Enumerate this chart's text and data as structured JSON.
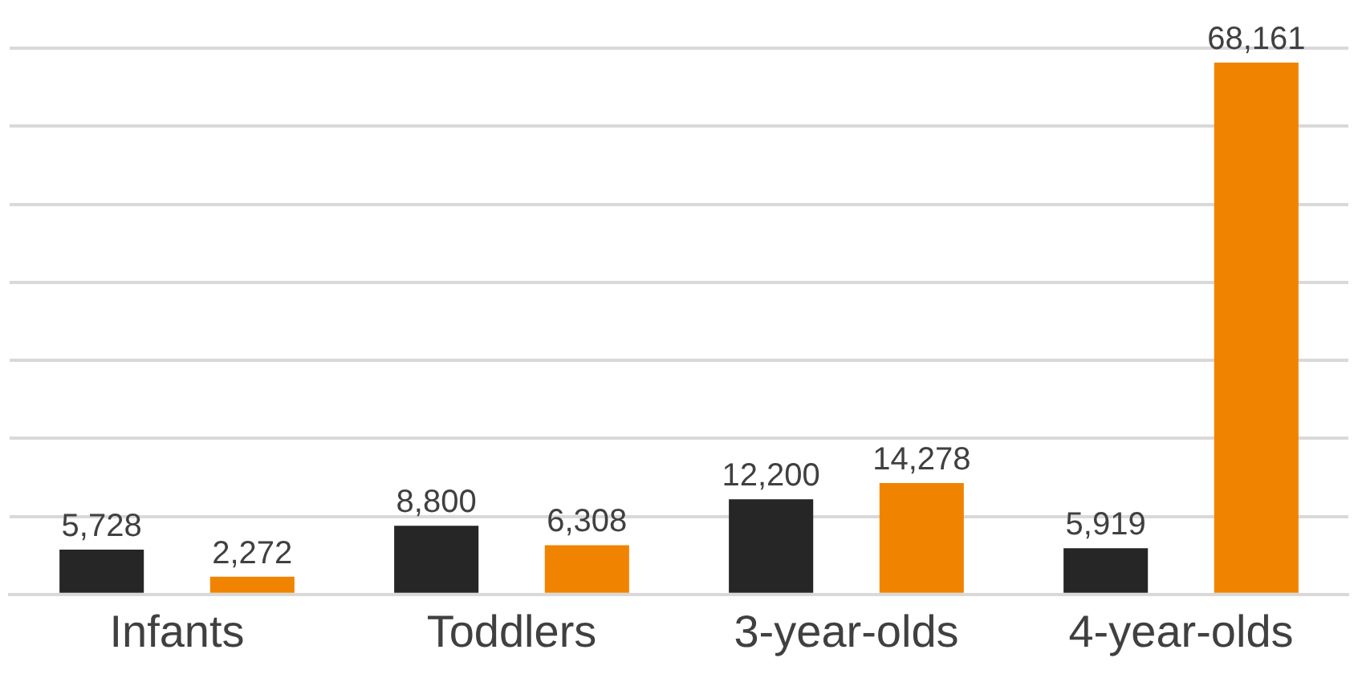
{
  "chart_data": {
    "type": "bar",
    "categories": [
      "Infants",
      "Toddlers",
      "3-year-olds",
      "4-year-olds"
    ],
    "series": [
      {
        "color": "#262626",
        "values": [
          5728,
          8800,
          12200,
          5919
        ],
        "value_labels": [
          "5,728",
          "8,800",
          "12,200",
          "5,919"
        ]
      },
      {
        "color": "#f08400",
        "values": [
          2272,
          6308,
          14278,
          68161
        ],
        "value_labels": [
          "2,272",
          "6,308",
          "14,278",
          "68,161"
        ]
      }
    ],
    "grid": "y",
    "tick_labels": "x",
    "legend": false
  }
}
